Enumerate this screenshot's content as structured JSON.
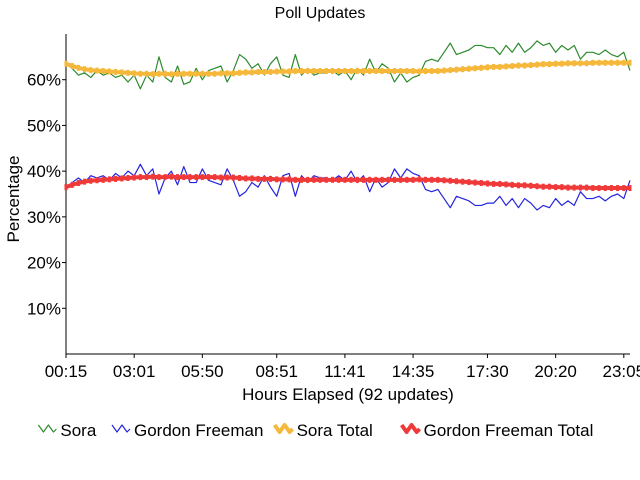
{
  "chart_data": {
    "type": "line",
    "title": "Poll Updates",
    "xlabel": "Hours Elapsed (92 updates)",
    "ylabel": "Percentage",
    "ylim": [
      0,
      70
    ],
    "y_ticks": [
      10,
      20,
      30,
      40,
      50,
      60
    ],
    "y_tick_format": "{v}%",
    "x_tick_labels": [
      "00:15",
      "03:01",
      "05:50",
      "08:51",
      "11:41",
      "14:35",
      "17:30",
      "20:20",
      "23:05"
    ],
    "x_tick_positions": [
      0,
      11,
      22,
      34,
      45,
      56,
      68,
      79,
      90
    ],
    "legend_position": "bottom",
    "grid": false,
    "series": [
      {
        "name": "Sora",
        "color": "#2e8b2e",
        "style": "thin",
        "values": [
          63.5,
          62.5,
          61,
          61.5,
          60.5,
          62,
          61,
          61.5,
          60.5,
          61,
          59.5,
          61,
          58,
          61,
          59.5,
          65,
          60.5,
          59.5,
          63,
          59,
          59.5,
          62.5,
          60,
          62,
          62.5,
          63,
          59.5,
          62,
          65.5,
          64.5,
          62.5,
          63.5,
          61,
          63.5,
          65,
          61,
          60.5,
          65.5,
          61,
          62.5,
          61,
          61.5,
          61.5,
          62,
          61,
          62,
          60,
          62.5,
          61,
          64.5,
          61.5,
          63.5,
          62.5,
          59.5,
          61.5,
          59.5,
          60.5,
          61,
          64,
          64.5,
          64,
          66,
          68,
          65.5,
          66,
          66.5,
          67.5,
          67.5,
          67,
          67,
          65.5,
          67.5,
          66,
          68,
          66,
          67,
          68.5,
          67.5,
          68,
          66,
          67.5,
          66.5,
          67.5,
          64.5,
          66,
          66,
          65.5,
          66.5,
          65.5,
          65,
          66,
          62
        ]
      },
      {
        "name": "Gordon Freeman",
        "color": "#2424e0",
        "style": "thin",
        "values": [
          36.5,
          37.5,
          38.5,
          37.5,
          39,
          38.5,
          39,
          38,
          39.5,
          38.5,
          40,
          39,
          41.5,
          39,
          40.5,
          35,
          38.5,
          40,
          37,
          41,
          37.5,
          37.5,
          40.5,
          38,
          37.5,
          37,
          40.5,
          38,
          34.5,
          35.5,
          37.5,
          36.5,
          39,
          36.5,
          34.5,
          39,
          39.5,
          34.5,
          39,
          37.5,
          39,
          38.5,
          38.5,
          38,
          39,
          38,
          40,
          37.5,
          39,
          35.5,
          38.5,
          36.5,
          37.5,
          40.5,
          38.5,
          40.5,
          39.5,
          39,
          36,
          35.5,
          36,
          34,
          32,
          34.5,
          34,
          33.5,
          32.5,
          32.5,
          33,
          33,
          34.5,
          32.5,
          34,
          32,
          34,
          33,
          31.5,
          32.5,
          32,
          34,
          32.5,
          33.5,
          32.5,
          35.5,
          34,
          34,
          34.5,
          33.5,
          34.5,
          35,
          34,
          38
        ]
      },
      {
        "name": "Sora Total",
        "color": "#f5b83a",
        "style": "thick",
        "values": [
          63.5,
          63,
          62.6,
          62.3,
          62.1,
          62,
          61.9,
          61.8,
          61.7,
          61.6,
          61.5,
          61.4,
          61.3,
          61.3,
          61.2,
          61.3,
          61.3,
          61.2,
          61.3,
          61.3,
          61.3,
          61.3,
          61.3,
          61.3,
          61.3,
          61.4,
          61.4,
          61.4,
          61.5,
          61.6,
          61.6,
          61.7,
          61.7,
          61.7,
          61.8,
          61.8,
          61.8,
          61.9,
          61.9,
          61.9,
          61.9,
          61.9,
          61.9,
          61.9,
          61.9,
          61.9,
          61.9,
          61.9,
          61.9,
          61.9,
          61.9,
          61.9,
          61.9,
          61.9,
          61.9,
          61.9,
          61.9,
          61.8,
          61.9,
          61.9,
          61.9,
          62,
          62.1,
          62.2,
          62.3,
          62.4,
          62.5,
          62.6,
          62.7,
          62.8,
          62.8,
          62.9,
          63,
          63.1,
          63.1,
          63.2,
          63.3,
          63.4,
          63.4,
          63.5,
          63.5,
          63.6,
          63.6,
          63.6,
          63.6,
          63.7,
          63.7,
          63.7,
          63.7,
          63.7,
          63.7,
          63.7
        ]
      },
      {
        "name": "Gordon Freeman Total",
        "color": "#f03a3a",
        "style": "thick",
        "values": [
          36.5,
          37,
          37.4,
          37.7,
          37.9,
          38,
          38.1,
          38.2,
          38.3,
          38.4,
          38.5,
          38.6,
          38.7,
          38.7,
          38.8,
          38.7,
          38.7,
          38.8,
          38.7,
          38.7,
          38.7,
          38.7,
          38.7,
          38.7,
          38.7,
          38.6,
          38.6,
          38.6,
          38.5,
          38.4,
          38.4,
          38.3,
          38.3,
          38.3,
          38.2,
          38.2,
          38.2,
          38.1,
          38.1,
          38.1,
          38.1,
          38.1,
          38.1,
          38.1,
          38.1,
          38.1,
          38.1,
          38.1,
          38.1,
          38.1,
          38.1,
          38.1,
          38.1,
          38.1,
          38.1,
          38.1,
          38.1,
          38.2,
          38.1,
          38.1,
          38.1,
          38,
          37.9,
          37.8,
          37.7,
          37.6,
          37.5,
          37.4,
          37.3,
          37.2,
          37.2,
          37.1,
          37,
          36.9,
          36.9,
          36.8,
          36.7,
          36.6,
          36.6,
          36.5,
          36.5,
          36.4,
          36.4,
          36.4,
          36.4,
          36.3,
          36.3,
          36.3,
          36.3,
          36.3,
          36.3,
          36.3
        ]
      }
    ]
  }
}
